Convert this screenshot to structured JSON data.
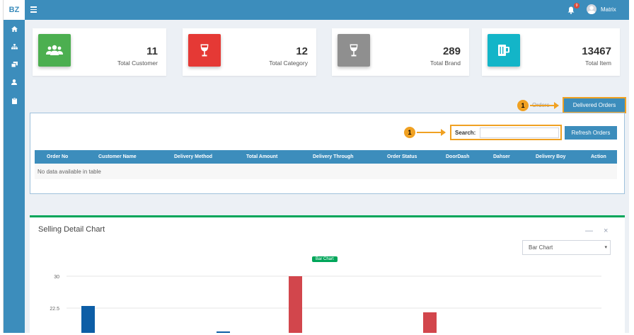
{
  "brand": "BZ",
  "topbar": {
    "notification_count": "9",
    "user_name": "Matrix"
  },
  "sidebar": {
    "icons": [
      "home-icon",
      "sitemap-icon",
      "clone-icon",
      "user-icon",
      "clipboard-icon"
    ]
  },
  "stats": [
    {
      "value": "11",
      "label": "Total Customer",
      "color": "#4caf50",
      "icon": "users-icon"
    },
    {
      "value": "12",
      "label": "Total Category",
      "color": "#e53935",
      "icon": "wine-glass-icon"
    },
    {
      "value": "289",
      "label": "Total Brand",
      "color": "#8f8f8f",
      "icon": "wine-glass-icon"
    },
    {
      "value": "13467",
      "label": "Total Item",
      "color": "#13b5c8",
      "icon": "beer-mug-icon"
    }
  ],
  "orders": {
    "tab_hidden_label": "Orders",
    "tab_active_label": "Delivered Orders",
    "search_label": "Search:",
    "search_value": "",
    "refresh_label": "Refresh Orders",
    "columns": [
      "Order No",
      "Customer Name",
      "Delivery Method",
      "Total Amount",
      "Delivery Through",
      "Order Status",
      "DoorDash",
      "Dahser",
      "Delivery Boy",
      "Action"
    ],
    "empty_message": "No data available in table"
  },
  "markers": {
    "tab_marker": "1",
    "search_marker": "1"
  },
  "chart": {
    "title": "Selling Detail Chart",
    "minimize_label": "—",
    "close_label": "×",
    "select_value": "Bar Chart",
    "badge": "Bar Chart"
  },
  "chart_data": {
    "type": "bar",
    "ytick_labels": [
      "30",
      "22.5"
    ],
    "ylim": [
      0,
      30
    ],
    "bars": [
      {
        "value": 23,
        "color": "#0d5ea6"
      },
      {
        "value": 17,
        "color": "#0d5ea6"
      },
      {
        "value": 30,
        "color": "#d2464c"
      },
      {
        "value": 21.5,
        "color": "#d2464c"
      }
    ]
  }
}
